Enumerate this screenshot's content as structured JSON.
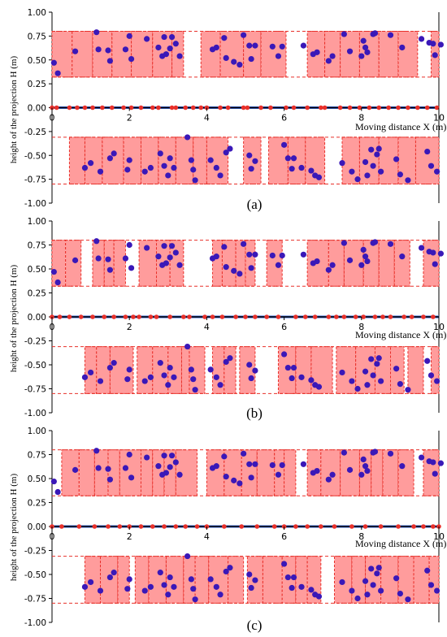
{
  "figure": {
    "ylabel": "height of the projection H (m)",
    "xlabel": "Moving distance X (m)",
    "colors": {
      "rect_fill": "#ff9c9c",
      "rect_stroke": "#e8302a",
      "point": "#3a18b8",
      "axis_line": "#000000",
      "ground_marker": "#e8302a",
      "outline_blue": "#2f5fd0"
    }
  },
  "chart_data": [
    {
      "panel": "a",
      "caption": "(a)",
      "type": "scatter",
      "xlim": [
        0,
        10
      ],
      "ylim": [
        -1.0,
        1.0
      ],
      "xticks": [
        0,
        2,
        4,
        6,
        8,
        10
      ],
      "yticks": [
        1.0,
        0.75,
        0.5,
        0.25,
        0.0,
        -0.25,
        -0.5,
        -0.75,
        -1.0
      ],
      "ytick_labels": [
        "1.00",
        "0.75",
        "0.50",
        "0.25",
        "0.00",
        "-0.25",
        "-0.50",
        "-0.75",
        "-1.00"
      ],
      "upper_band": [
        0.32,
        0.8
      ],
      "lower_band": [
        -0.8,
        -0.31
      ],
      "upper_rects": [
        [
          0.0,
          0.52
        ],
        [
          0.52,
          1.05
        ],
        [
          1.05,
          1.55
        ],
        [
          1.55,
          2.05
        ],
        [
          2.05,
          2.6
        ],
        [
          2.6,
          3.1
        ],
        [
          3.1,
          3.4
        ],
        [
          3.85,
          4.35
        ],
        [
          4.35,
          4.95
        ],
        [
          4.95,
          5.4
        ],
        [
          5.4,
          6.05
        ],
        [
          6.6,
          7.05
        ],
        [
          7.05,
          7.45
        ],
        [
          7.45,
          7.95
        ],
        [
          7.95,
          8.45
        ],
        [
          8.45,
          8.95
        ],
        [
          8.95,
          9.45
        ],
        [
          9.8,
          10.1
        ]
      ],
      "lower_rects": [
        [
          0.45,
          0.85
        ],
        [
          0.85,
          1.3
        ],
        [
          1.3,
          1.85
        ],
        [
          1.85,
          2.3
        ],
        [
          2.3,
          2.75
        ],
        [
          2.75,
          3.2
        ],
        [
          3.2,
          3.65
        ],
        [
          3.65,
          4.0
        ],
        [
          4.0,
          4.55
        ],
        [
          4.95,
          5.4
        ],
        [
          5.6,
          6.1
        ],
        [
          6.1,
          6.55
        ],
        [
          6.55,
          7.05
        ],
        [
          7.5,
          7.95
        ],
        [
          7.95,
          8.45
        ],
        [
          8.45,
          8.95
        ],
        [
          8.95,
          9.4
        ],
        [
          9.4,
          10.1
        ]
      ],
      "ground_x": [
        0.0,
        0.12,
        0.45,
        0.65,
        0.85,
        1.05,
        1.3,
        1.55,
        1.85,
        2.05,
        2.3,
        2.6,
        2.75,
        3.1,
        3.2,
        3.45,
        3.65,
        3.85,
        4.0,
        4.35,
        4.55,
        4.95,
        5.05,
        5.4,
        5.65,
        6.05,
        6.25,
        6.6,
        6.95,
        7.05,
        7.45,
        7.7,
        7.95,
        8.2,
        8.45,
        8.7,
        8.95,
        9.2,
        9.45,
        9.7,
        9.95
      ]
    },
    {
      "panel": "b",
      "caption": "(b)",
      "type": "scatter",
      "xlim": [
        0,
        10
      ],
      "ylim": [
        -1.0,
        1.0
      ],
      "xticks": [
        0,
        2,
        4,
        6,
        8,
        10
      ],
      "yticks": [
        1.0,
        0.75,
        0.5,
        0.25,
        0.0,
        -0.25,
        -0.5,
        -0.75,
        -1.0
      ],
      "ytick_labels": [
        "1.00",
        "0.75",
        "0.50",
        "0.25",
        "0.00",
        "-0.25",
        "-0.50",
        "-0.75",
        "-1.00"
      ],
      "upper_band": [
        0.32,
        0.8
      ],
      "lower_band": [
        -0.8,
        -0.31
      ],
      "upper_rects": [
        [
          0.0,
          0.35
        ],
        [
          0.35,
          0.75
        ],
        [
          1.05,
          1.35
        ],
        [
          1.35,
          1.6
        ],
        [
          1.6,
          1.9
        ],
        [
          2.25,
          2.7
        ],
        [
          2.7,
          3.05
        ],
        [
          3.05,
          3.4
        ],
        [
          4.15,
          4.4
        ],
        [
          4.4,
          4.75
        ],
        [
          4.75,
          5.0
        ],
        [
          5.0,
          5.25
        ],
        [
          5.55,
          5.95
        ],
        [
          6.6,
          7.15
        ],
        [
          7.15,
          7.55
        ],
        [
          7.55,
          8.05
        ],
        [
          8.05,
          8.45
        ],
        [
          8.45,
          8.85
        ],
        [
          8.85,
          9.25
        ],
        [
          9.6,
          10.1
        ]
      ],
      "lower_rects": [
        [
          0.85,
          1.15
        ],
        [
          1.15,
          1.5
        ],
        [
          1.5,
          2.1
        ],
        [
          2.2,
          2.6
        ],
        [
          2.6,
          3.0
        ],
        [
          3.0,
          3.35
        ],
        [
          3.35,
          3.55
        ],
        [
          3.55,
          3.95
        ],
        [
          4.15,
          4.45
        ],
        [
          4.45,
          4.75
        ],
        [
          4.85,
          5.25
        ],
        [
          5.85,
          6.3
        ],
        [
          6.3,
          6.7
        ],
        [
          6.7,
          7.25
        ],
        [
          7.35,
          7.85
        ],
        [
          7.85,
          8.35
        ],
        [
          8.35,
          8.75
        ],
        [
          8.75,
          9.1
        ],
        [
          9.2,
          9.6
        ],
        [
          9.8,
          10.1
        ]
      ],
      "ground_x": [
        0.0,
        0.2,
        0.45,
        0.75,
        1.05,
        1.35,
        1.6,
        1.9,
        2.1,
        2.25,
        2.55,
        2.7,
        3.05,
        3.4,
        3.55,
        3.95,
        4.15,
        4.4,
        4.75,
        5.0,
        5.25,
        5.55,
        5.85,
        6.3,
        6.55,
        6.8,
        7.15,
        7.35,
        7.55,
        7.85,
        8.05,
        8.35,
        8.55,
        8.75,
        9.1,
        9.3,
        9.6,
        9.85
      ]
    },
    {
      "panel": "c",
      "caption": "(c)",
      "type": "scatter",
      "xlim": [
        0,
        10
      ],
      "ylim": [
        -1.0,
        1.0
      ],
      "xticks": [
        0,
        2,
        4,
        6,
        8,
        10
      ],
      "yticks": [
        1.0,
        0.75,
        0.5,
        0.25,
        0.0,
        -0.25,
        -0.5,
        -0.75,
        -1.0
      ],
      "ytick_labels": [
        "1.00",
        "0.75",
        "0.50",
        "0.25",
        "0.00",
        "-0.25",
        "-0.50",
        "-0.75",
        "-1.00"
      ],
      "upper_band": [
        0.32,
        0.8
      ],
      "lower_band": [
        -0.8,
        -0.31
      ],
      "upper_rects": [
        [
          0.25,
          0.7
        ],
        [
          0.7,
          1.1
        ],
        [
          1.1,
          1.45
        ],
        [
          1.45,
          1.75
        ],
        [
          1.75,
          2.3
        ],
        [
          2.3,
          2.6
        ],
        [
          2.6,
          2.9
        ],
        [
          2.9,
          3.2
        ],
        [
          3.2,
          3.75
        ],
        [
          4.0,
          4.45
        ],
        [
          4.45,
          4.9
        ],
        [
          4.9,
          5.3
        ],
        [
          5.3,
          5.75
        ],
        [
          5.75,
          6.0
        ],
        [
          6.0,
          6.3
        ],
        [
          6.6,
          6.95
        ],
        [
          6.95,
          7.45
        ],
        [
          7.45,
          7.95
        ],
        [
          7.95,
          8.25
        ],
        [
          8.25,
          8.55
        ],
        [
          8.55,
          8.95
        ],
        [
          8.95,
          9.35
        ],
        [
          9.6,
          10.1
        ]
      ],
      "lower_rects": [
        [
          0.85,
          1.25
        ],
        [
          1.25,
          1.7
        ],
        [
          1.7,
          2.0
        ],
        [
          2.15,
          2.5
        ],
        [
          2.5,
          2.95
        ],
        [
          2.95,
          3.4
        ],
        [
          3.4,
          3.7
        ],
        [
          3.7,
          4.05
        ],
        [
          4.05,
          4.55
        ],
        [
          4.55,
          4.95
        ],
        [
          5.05,
          5.45
        ],
        [
          5.45,
          5.95
        ],
        [
          5.95,
          6.3
        ],
        [
          6.3,
          6.6
        ],
        [
          6.6,
          6.95
        ],
        [
          7.3,
          7.75
        ],
        [
          7.75,
          8.1
        ],
        [
          8.1,
          8.5
        ],
        [
          8.5,
          8.95
        ],
        [
          8.95,
          9.35
        ],
        [
          9.35,
          9.75
        ],
        [
          9.75,
          10.1
        ]
      ],
      "ground_x": [
        0.0,
        0.25,
        0.7,
        1.1,
        1.45,
        1.75,
        2.0,
        2.3,
        2.6,
        2.9,
        3.2,
        3.45,
        3.75,
        4.0,
        4.45,
        4.9,
        5.3,
        5.75,
        6.0,
        6.3,
        6.6,
        6.95,
        7.3,
        7.75,
        8.1,
        8.5,
        8.95,
        9.35,
        9.6,
        9.85,
        10.0
      ]
    }
  ],
  "points": {
    "upper": [
      [
        0.05,
        0.47
      ],
      [
        0.15,
        0.36
      ],
      [
        0.6,
        0.59
      ],
      [
        1.15,
        0.79
      ],
      [
        1.2,
        0.61
      ],
      [
        1.45,
        0.6
      ],
      [
        1.5,
        0.49
      ],
      [
        1.9,
        0.61
      ],
      [
        2.0,
        0.75
      ],
      [
        2.05,
        0.51
      ],
      [
        2.45,
        0.72
      ],
      [
        2.75,
        0.63
      ],
      [
        2.85,
        0.54
      ],
      [
        2.9,
        0.74
      ],
      [
        2.95,
        0.56
      ],
      [
        3.05,
        0.62
      ],
      [
        3.1,
        0.74
      ],
      [
        3.2,
        0.67
      ],
      [
        3.3,
        0.54
      ],
      [
        4.15,
        0.61
      ],
      [
        4.25,
        0.63
      ],
      [
        4.45,
        0.73
      ],
      [
        4.5,
        0.52
      ],
      [
        4.7,
        0.48
      ],
      [
        4.85,
        0.45
      ],
      [
        4.95,
        0.76
      ],
      [
        5.1,
        0.65
      ],
      [
        5.15,
        0.51
      ],
      [
        5.25,
        0.65
      ],
      [
        5.7,
        0.64
      ],
      [
        5.85,
        0.54
      ],
      [
        5.95,
        0.64
      ],
      [
        6.5,
        0.65
      ],
      [
        6.75,
        0.56
      ],
      [
        6.85,
        0.58
      ],
      [
        7.15,
        0.49
      ],
      [
        7.25,
        0.54
      ],
      [
        7.55,
        0.77
      ],
      [
        7.7,
        0.59
      ],
      [
        8.0,
        0.54
      ],
      [
        8.05,
        0.7
      ],
      [
        8.1,
        0.63
      ],
      [
        8.15,
        0.58
      ],
      [
        8.3,
        0.77
      ],
      [
        8.35,
        0.78
      ],
      [
        8.75,
        0.76
      ],
      [
        9.05,
        0.63
      ],
      [
        9.55,
        0.72
      ],
      [
        9.75,
        0.68
      ],
      [
        9.85,
        0.67
      ],
      [
        9.9,
        0.55
      ],
      [
        10.05,
        0.66
      ]
    ],
    "lower": [
      [
        0.85,
        -0.63
      ],
      [
        1.0,
        -0.58
      ],
      [
        1.25,
        -0.67
      ],
      [
        1.5,
        -0.53
      ],
      [
        1.6,
        -0.48
      ],
      [
        1.95,
        -0.65
      ],
      [
        2.0,
        -0.55
      ],
      [
        2.4,
        -0.67
      ],
      [
        2.55,
        -0.63
      ],
      [
        2.8,
        -0.48
      ],
      [
        2.9,
        -0.61
      ],
      [
        3.0,
        -0.71
      ],
      [
        3.05,
        -0.53
      ],
      [
        3.15,
        -0.63
      ],
      [
        3.5,
        -0.31
      ],
      [
        3.6,
        -0.55
      ],
      [
        3.65,
        -0.65
      ],
      [
        3.7,
        -0.76
      ],
      [
        4.1,
        -0.55
      ],
      [
        4.25,
        -0.63
      ],
      [
        4.35,
        -0.71
      ],
      [
        4.5,
        -0.47
      ],
      [
        4.6,
        -0.43
      ],
      [
        5.1,
        -0.5
      ],
      [
        5.15,
        -0.64
      ],
      [
        5.25,
        -0.56
      ],
      [
        6.0,
        -0.39
      ],
      [
        6.1,
        -0.53
      ],
      [
        6.2,
        -0.64
      ],
      [
        6.25,
        -0.53
      ],
      [
        6.45,
        -0.63
      ],
      [
        6.7,
        -0.66
      ],
      [
        6.8,
        -0.71
      ],
      [
        6.9,
        -0.73
      ],
      [
        7.5,
        -0.58
      ],
      [
        7.75,
        -0.67
      ],
      [
        7.9,
        -0.75
      ],
      [
        8.1,
        -0.57
      ],
      [
        8.15,
        -0.71
      ],
      [
        8.25,
        -0.44
      ],
      [
        8.3,
        -0.61
      ],
      [
        8.4,
        -0.49
      ],
      [
        8.45,
        -0.43
      ],
      [
        8.5,
        -0.67
      ],
      [
        8.9,
        -0.54
      ],
      [
        9.0,
        -0.7
      ],
      [
        9.2,
        -0.76
      ],
      [
        9.7,
        -0.46
      ],
      [
        9.8,
        -0.61
      ],
      [
        9.95,
        -0.67
      ]
    ]
  }
}
